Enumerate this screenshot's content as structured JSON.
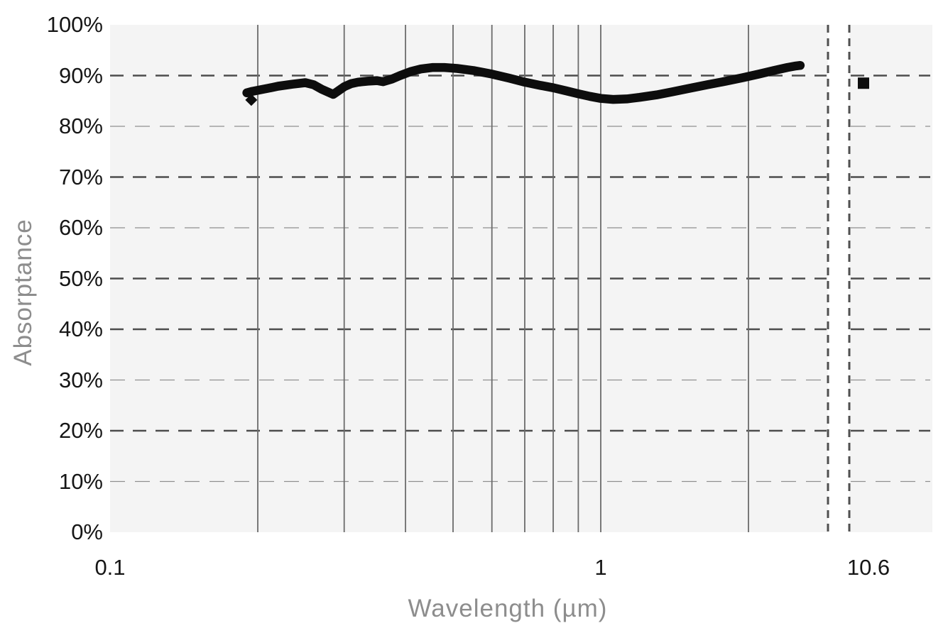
{
  "chart_data": {
    "type": "scatter",
    "xlabel": "Wavelength (µm)",
    "ylabel": "Absorptance",
    "x_scale": "log",
    "ylim": [
      0,
      100
    ],
    "grid": true,
    "axis_break": true,
    "x_ticks": [
      {
        "value": 0.1,
        "label": "0.1"
      },
      {
        "value": 1,
        "label": "1"
      },
      {
        "value": 10.6,
        "label": "10.6"
      }
    ],
    "y_ticks": [
      {
        "value": 0,
        "label": "0%"
      },
      {
        "value": 10,
        "label": "10%"
      },
      {
        "value": 20,
        "label": "20%"
      },
      {
        "value": 30,
        "label": "30%"
      },
      {
        "value": 40,
        "label": "40%"
      },
      {
        "value": 50,
        "label": "50%"
      },
      {
        "value": 60,
        "label": "60%"
      },
      {
        "value": 70,
        "label": "70%"
      },
      {
        "value": 80,
        "label": "80%"
      },
      {
        "value": 90,
        "label": "90%"
      },
      {
        "value": 100,
        "label": "100%"
      }
    ],
    "x_gridlines_um": [
      0.2,
      0.3,
      0.4,
      0.5,
      0.6,
      0.7,
      0.8,
      0.9,
      1,
      2
    ],
    "series": [
      {
        "name": "absorptance-spectrum-curve",
        "type": "line",
        "points": [
          [
            0.19,
            86.6
          ],
          [
            0.195,
            86.9
          ],
          [
            0.2,
            87.1
          ],
          [
            0.21,
            87.5
          ],
          [
            0.22,
            87.9
          ],
          [
            0.235,
            88.3
          ],
          [
            0.25,
            88.6
          ],
          [
            0.26,
            88.2
          ],
          [
            0.27,
            87.3
          ],
          [
            0.285,
            86.3
          ],
          [
            0.3,
            87.8
          ],
          [
            0.31,
            88.4
          ],
          [
            0.32,
            88.7
          ],
          [
            0.335,
            88.9
          ],
          [
            0.35,
            89.0
          ],
          [
            0.36,
            88.8
          ],
          [
            0.375,
            89.3
          ],
          [
            0.39,
            90.0
          ],
          [
            0.41,
            90.8
          ],
          [
            0.43,
            91.3
          ],
          [
            0.455,
            91.6
          ],
          [
            0.48,
            91.6
          ],
          [
            0.51,
            91.4
          ],
          [
            0.55,
            91.0
          ],
          [
            0.6,
            90.3
          ],
          [
            0.65,
            89.5
          ],
          [
            0.7,
            88.7
          ],
          [
            0.75,
            88.1
          ],
          [
            0.8,
            87.6
          ],
          [
            0.85,
            87.0
          ],
          [
            0.9,
            86.4
          ],
          [
            0.95,
            85.9
          ],
          [
            1.0,
            85.5
          ],
          [
            1.06,
            85.3
          ],
          [
            1.13,
            85.4
          ],
          [
            1.2,
            85.7
          ],
          [
            1.3,
            86.2
          ],
          [
            1.4,
            86.8
          ],
          [
            1.5,
            87.4
          ],
          [
            1.65,
            88.2
          ],
          [
            1.8,
            88.9
          ],
          [
            1.95,
            89.6
          ],
          [
            2.1,
            90.3
          ],
          [
            2.25,
            91.0
          ],
          [
            2.4,
            91.6
          ],
          [
            2.5,
            91.9
          ],
          [
            2.55,
            92.0
          ]
        ]
      },
      {
        "name": "point-10-6um",
        "type": "point",
        "points": [
          [
            10.6,
            88.5
          ]
        ]
      },
      {
        "name": "curve-start-artifact",
        "type": "point",
        "points": [
          [
            0.194,
            85.2
          ]
        ]
      }
    ],
    "colors": {
      "curve": "#0d0d0d",
      "point": "#0d0d0d",
      "plot_background": "#f4f4f4",
      "grid_vertical": "#6b6b6b",
      "grid_dash_dark": "#4d4d4d",
      "grid_dash_light": "#8f8f8f",
      "break_line": "#4f4f4f",
      "tick_label": "#161616",
      "axis_title": "#8d8d8d"
    }
  }
}
